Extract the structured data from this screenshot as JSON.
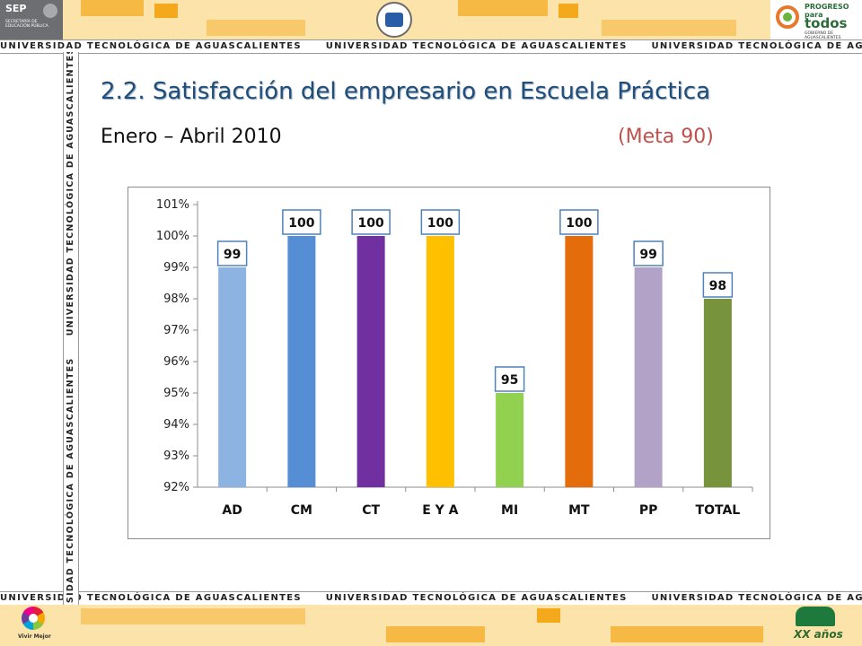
{
  "header": {
    "sep_logo_text": "SEP",
    "sep_logo_subtitle": "SECRETARÍA DE EDUCACIÓN PÚBLICA",
    "university_banner": "UNIVERSIDAD TECNOLÓGICA DE AGUASCALIENTES",
    "right_logo_line1": "PROGRESO",
    "right_logo_line2": "para",
    "right_logo_line3": "todos",
    "right_logo_caption": "GOBIERNO DE AGUASCALIENTES"
  },
  "footer": {
    "left_logo_text": "Vivir Mejor",
    "right_logo_text": "XX años"
  },
  "colors": {
    "title": "#1f4e79",
    "meta": "#c0504d",
    "band": "#fbe3a9"
  },
  "slide": {
    "title": "2.2. Satisfacción del empresario en Escuela Práctica",
    "subtitle": "Enero – Abril 2010",
    "meta": "(Meta 90)"
  },
  "chart_data": {
    "type": "bar",
    "title": "",
    "xlabel": "",
    "ylabel": "",
    "categories": [
      "AD",
      "CM",
      "CT",
      "E Y A",
      "MI",
      "MT",
      "PP",
      "TOTAL"
    ],
    "values": [
      99,
      100,
      100,
      100,
      95,
      100,
      99,
      98
    ],
    "data_labels": [
      "99",
      "100",
      "100",
      "100",
      "95",
      "100",
      "99",
      "98"
    ],
    "bar_colors": [
      "#8db3e2",
      "#558ed5",
      "#7030a0",
      "#ffc000",
      "#92d050",
      "#e46c0a",
      "#b3a2c7",
      "#77933c"
    ],
    "ylim": [
      92,
      101
    ],
    "y_ticks": [
      "92%",
      "93%",
      "94%",
      "95%",
      "96%",
      "97%",
      "98%",
      "99%",
      "100%",
      "101%"
    ],
    "grid": false,
    "legend": "none"
  }
}
